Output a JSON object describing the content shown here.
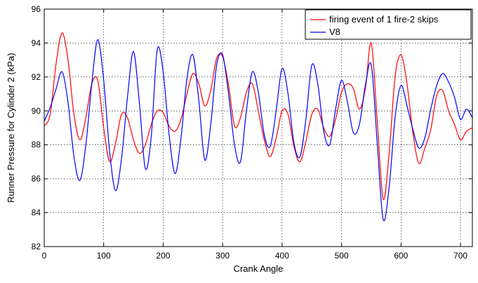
{
  "chart_data": {
    "type": "line",
    "title": "",
    "xlabel": "Crank Angle",
    "ylabel": "Runner Pressure for Cylinder 2 (kPa)",
    "xlim": [
      0,
      720
    ],
    "ylim": [
      82,
      96
    ],
    "xticks": [
      0,
      100,
      200,
      300,
      400,
      500,
      600,
      700
    ],
    "yticks": [
      82,
      84,
      86,
      88,
      90,
      92,
      94,
      96
    ],
    "grid": true,
    "legend_position": "top-right",
    "series": [
      {
        "name": "firing event of 1 fire-2 skips",
        "color": "#ff0000",
        "x": [
          0,
          10,
          20,
          30,
          40,
          50,
          60,
          70,
          80,
          90,
          100,
          110,
          120,
          130,
          140,
          150,
          160,
          170,
          180,
          190,
          200,
          210,
          220,
          230,
          240,
          250,
          260,
          270,
          280,
          290,
          300,
          310,
          320,
          330,
          340,
          350,
          360,
          370,
          380,
          390,
          400,
          410,
          420,
          430,
          440,
          450,
          460,
          470,
          480,
          490,
          500,
          510,
          520,
          530,
          540,
          550,
          560,
          570,
          580,
          590,
          600,
          610,
          620,
          630,
          640,
          650,
          660,
          670,
          680,
          690,
          700,
          710,
          720
        ],
        "y": [
          89.1,
          89.8,
          92.8,
          94.6,
          93.0,
          89.8,
          88.3,
          89.6,
          91.6,
          91.8,
          89.0,
          87.0,
          88.1,
          89.8,
          89.6,
          88.3,
          87.5,
          88.0,
          89.2,
          90.0,
          89.9,
          89.1,
          88.8,
          89.5,
          91.0,
          92.2,
          91.6,
          90.3,
          91.2,
          93.1,
          93.2,
          91.5,
          89.1,
          89.6,
          91.1,
          91.6,
          90.0,
          88.3,
          87.3,
          88.4,
          90.0,
          89.8,
          87.9,
          87.0,
          88.2,
          89.8,
          90.1,
          89.0,
          88.5,
          89.5,
          91.1,
          91.6,
          91.3,
          90.1,
          91.3,
          94.0,
          89.4,
          84.8,
          87.5,
          92.0,
          93.3,
          91.6,
          88.7,
          86.9,
          87.8,
          88.9,
          90.9,
          91.2,
          90.0,
          89.2,
          88.3,
          88.8,
          89.0
        ]
      },
      {
        "name": "V8",
        "color": "#0000ff",
        "x": [
          0,
          10,
          20,
          30,
          40,
          50,
          60,
          70,
          80,
          90,
          100,
          110,
          120,
          130,
          140,
          150,
          160,
          170,
          180,
          190,
          200,
          210,
          220,
          230,
          240,
          250,
          260,
          270,
          280,
          290,
          300,
          310,
          320,
          330,
          340,
          350,
          360,
          370,
          380,
          390,
          400,
          410,
          420,
          430,
          440,
          450,
          460,
          470,
          480,
          490,
          500,
          510,
          520,
          530,
          540,
          550,
          560,
          570,
          580,
          590,
          600,
          610,
          620,
          630,
          640,
          650,
          660,
          670,
          680,
          690,
          700,
          710,
          720
        ],
        "y": [
          89.4,
          90.2,
          91.3,
          92.3,
          90.5,
          87.3,
          85.9,
          88.0,
          91.6,
          94.2,
          91.8,
          87.6,
          85.3,
          87.2,
          90.8,
          93.5,
          90.5,
          86.6,
          88.5,
          93.6,
          92.3,
          88.6,
          86.3,
          88.4,
          91.9,
          93.3,
          90.6,
          87.1,
          89.2,
          92.7,
          93.3,
          91.0,
          88.0,
          87.0,
          90.0,
          92.3,
          91.1,
          88.6,
          87.9,
          90.0,
          92.5,
          91.0,
          88.1,
          87.3,
          89.5,
          92.7,
          91.6,
          88.8,
          88.0,
          90.1,
          91.8,
          90.5,
          88.7,
          89.2,
          91.5,
          92.7,
          88.1,
          83.6,
          85.5,
          89.6,
          91.5,
          90.3,
          88.9,
          87.8,
          88.4,
          90.1,
          91.5,
          92.2,
          91.7,
          90.8,
          89.5,
          90.1,
          89.6
        ]
      }
    ]
  }
}
